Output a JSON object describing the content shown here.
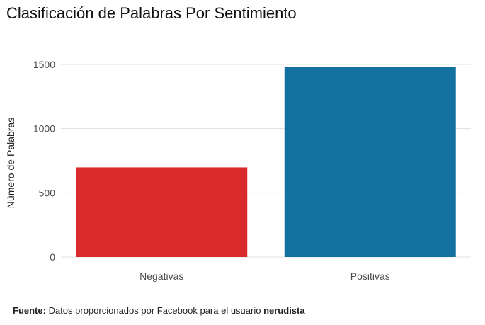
{
  "chart_data": {
    "type": "bar",
    "title": "Clasificación de Palabras Por Sentimiento",
    "xlabel": "",
    "ylabel": "Número de Palabras",
    "categories": [
      "Negativas",
      "Positivas"
    ],
    "values": [
      698,
      1481
    ],
    "colors": [
      "#D92B2B",
      "#13719F"
    ],
    "ylim": [
      0,
      1500
    ],
    "yticks": [
      0,
      500,
      1000,
      1500
    ],
    "grid": true,
    "legend": "none"
  },
  "caption": {
    "label": "Fuente:",
    "text": " Datos proporcionados por Facebook para el usuario ",
    "user": "nerudista"
  }
}
